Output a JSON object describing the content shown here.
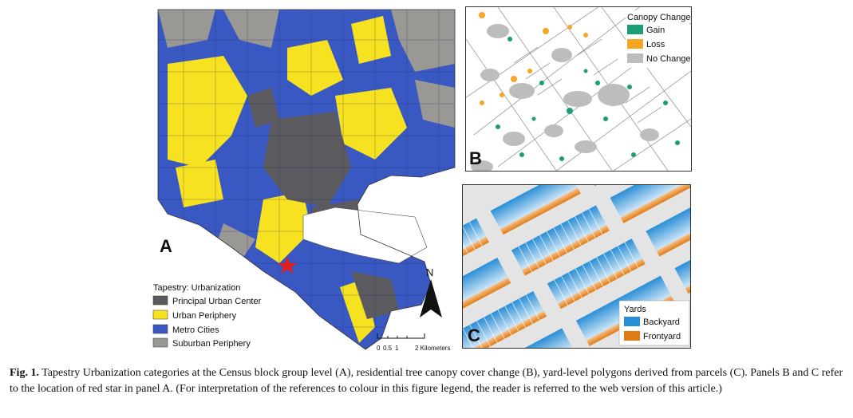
{
  "panel_a": {
    "letter": "A",
    "legend_title": "Tapestry: Urbanization",
    "legend_items": [
      {
        "label": "Principal Urban Center",
        "color": "#5a5a5f"
      },
      {
        "label": "Urban Periphery",
        "color": "#f7e221"
      },
      {
        "label": "Metro Cities",
        "color": "#3a58c2"
      },
      {
        "label": "Suburban Periphery",
        "color": "#9a9895"
      }
    ],
    "north_label": "N",
    "scale_ticks": [
      "0",
      "0.5",
      "1",
      "2 Kilometers"
    ],
    "marker_color": "#e02020"
  },
  "panel_b": {
    "letter": "B",
    "legend_title": "Canopy Change",
    "legend_items": [
      {
        "label": "Gain",
        "color": "#1b9e77"
      },
      {
        "label": "Loss",
        "color": "#f5a623"
      },
      {
        "label": "No Change",
        "color": "#bdbdbd"
      }
    ]
  },
  "panel_c": {
    "letter": "C",
    "legend_title": "Yards",
    "legend_items": [
      {
        "label": "Backyard",
        "color": "#2b8fd6"
      },
      {
        "label": "Frontyard",
        "color": "#e07b15"
      }
    ]
  },
  "caption": {
    "label": "Fig. 1.",
    "text": "Tapestry Urbanization categories at the Census block group level (A), residential tree canopy cover change (B), yard-level polygons derived from parcels (C). Panels B and C refer to the location of red star in panel A. (For interpretation of the references to colour in this figure legend, the reader is referred to the web version of this article.)"
  }
}
